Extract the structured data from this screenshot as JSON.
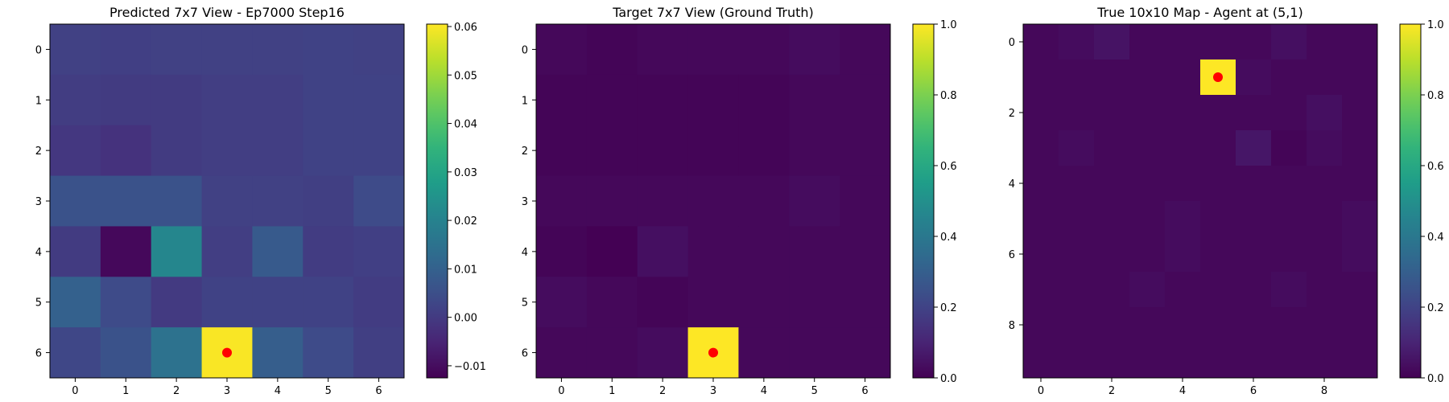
{
  "chart_data": [
    {
      "type": "heatmap",
      "title": "Predicted 7x7 View - Ep7000 Step16",
      "rows": 7,
      "cols": 7,
      "xticks": [
        0,
        1,
        2,
        3,
        4,
        5,
        6
      ],
      "yticks": [
        0,
        1,
        2,
        3,
        4,
        5,
        6
      ],
      "values": [
        [
          0.0015,
          0.0012,
          0.0015,
          0.0015,
          0.0015,
          0.0018,
          0.0015
        ],
        [
          0.0006,
          0.0001,
          0.0001,
          0.0008,
          0.0008,
          0.0018,
          0.0018
        ],
        [
          -0.0008,
          -0.002,
          0.0001,
          0.0008,
          0.0008,
          0.0018,
          0.0018
        ],
        [
          0.006,
          0.006,
          0.006,
          0.0015,
          0.0015,
          0.001,
          0.004
        ],
        [
          0.0001,
          -0.011,
          0.021,
          0.0008,
          0.008,
          0.0005,
          0.0012
        ],
        [
          0.01,
          0.004,
          -0.0002,
          0.0018,
          0.0018,
          0.0018,
          0.0005
        ],
        [
          0.003,
          0.006,
          0.015,
          0.06,
          0.009,
          0.004,
          0.001
        ]
      ],
      "vmin": -0.0125,
      "vmax": 0.0605,
      "colorbar_ticks": [
        "0.06",
        "0.05",
        "0.04",
        "0.03",
        "0.02",
        "0.01",
        "0.00",
        "−0.01"
      ],
      "colorbar_tick_values": [
        0.06,
        0.05,
        0.04,
        0.03,
        0.02,
        0.01,
        0.0,
        -0.01
      ],
      "agent_marker": {
        "col": 3,
        "row": 6,
        "color": "#ff0000"
      }
    },
    {
      "type": "heatmap",
      "title": "Target 7x7 View (Ground Truth)",
      "rows": 7,
      "cols": 7,
      "xticks": [
        0,
        1,
        2,
        3,
        4,
        5,
        6
      ],
      "yticks": [
        0,
        1,
        2,
        3,
        4,
        5,
        6
      ],
      "values": [
        [
          0.02,
          0.01,
          0.02,
          0.02,
          0.02,
          0.03,
          0.02
        ],
        [
          0.01,
          0.01,
          0.01,
          0.01,
          0.01,
          0.02,
          0.02
        ],
        [
          0.01,
          0.01,
          0.01,
          0.01,
          0.01,
          0.02,
          0.02
        ],
        [
          0.02,
          0.02,
          0.02,
          0.02,
          0.02,
          0.03,
          0.02
        ],
        [
          0.01,
          0.0,
          0.04,
          0.02,
          0.02,
          0.02,
          0.02
        ],
        [
          0.03,
          0.02,
          0.01,
          0.02,
          0.02,
          0.02,
          0.02
        ],
        [
          0.02,
          0.02,
          0.03,
          1.0,
          0.02,
          0.02,
          0.02
        ]
      ],
      "vmin": 0.0,
      "vmax": 1.0,
      "colorbar_ticks": [
        "1.0",
        "0.8",
        "0.6",
        "0.4",
        "0.2",
        "0.0"
      ],
      "colorbar_tick_values": [
        1.0,
        0.8,
        0.6,
        0.4,
        0.2,
        0.0
      ],
      "agent_marker": {
        "col": 3,
        "row": 6,
        "color": "#ff0000"
      }
    },
    {
      "type": "heatmap",
      "title": "True 10x10 Map - Agent at (5,1)",
      "rows": 10,
      "cols": 10,
      "xticks": [
        0,
        2,
        4,
        6,
        8
      ],
      "yticks": [
        0,
        2,
        4,
        6,
        8
      ],
      "values": [
        [
          0.02,
          0.03,
          0.05,
          0.02,
          0.02,
          0.02,
          0.02,
          0.04,
          0.02,
          0.02
        ],
        [
          0.02,
          0.02,
          0.02,
          0.02,
          0.02,
          1.0,
          0.03,
          0.02,
          0.02,
          0.02
        ],
        [
          0.02,
          0.02,
          0.02,
          0.02,
          0.02,
          0.02,
          0.02,
          0.02,
          0.04,
          0.02
        ],
        [
          0.02,
          0.03,
          0.02,
          0.02,
          0.02,
          0.02,
          0.06,
          0.01,
          0.03,
          0.02
        ],
        [
          0.02,
          0.02,
          0.02,
          0.02,
          0.02,
          0.02,
          0.02,
          0.02,
          0.02,
          0.02
        ],
        [
          0.02,
          0.02,
          0.02,
          0.02,
          0.03,
          0.02,
          0.02,
          0.02,
          0.02,
          0.03
        ],
        [
          0.02,
          0.02,
          0.02,
          0.02,
          0.03,
          0.02,
          0.02,
          0.02,
          0.02,
          0.03
        ],
        [
          0.02,
          0.02,
          0.02,
          0.03,
          0.02,
          0.02,
          0.02,
          0.03,
          0.02,
          0.02
        ],
        [
          0.02,
          0.02,
          0.02,
          0.02,
          0.02,
          0.02,
          0.02,
          0.02,
          0.02,
          0.02
        ],
        [
          0.02,
          0.02,
          0.02,
          0.02,
          0.02,
          0.02,
          0.02,
          0.02,
          0.02,
          0.02
        ]
      ],
      "vmin": 0.0,
      "vmax": 1.0,
      "colorbar_ticks": [
        "1.0",
        "0.8",
        "0.6",
        "0.4",
        "0.2",
        "0.0"
      ],
      "colorbar_tick_values": [
        1.0,
        0.8,
        0.6,
        0.4,
        0.2,
        0.0
      ],
      "agent_marker": {
        "col": 5,
        "row": 1,
        "color": "#ff0000"
      }
    }
  ],
  "colormap": "viridis"
}
